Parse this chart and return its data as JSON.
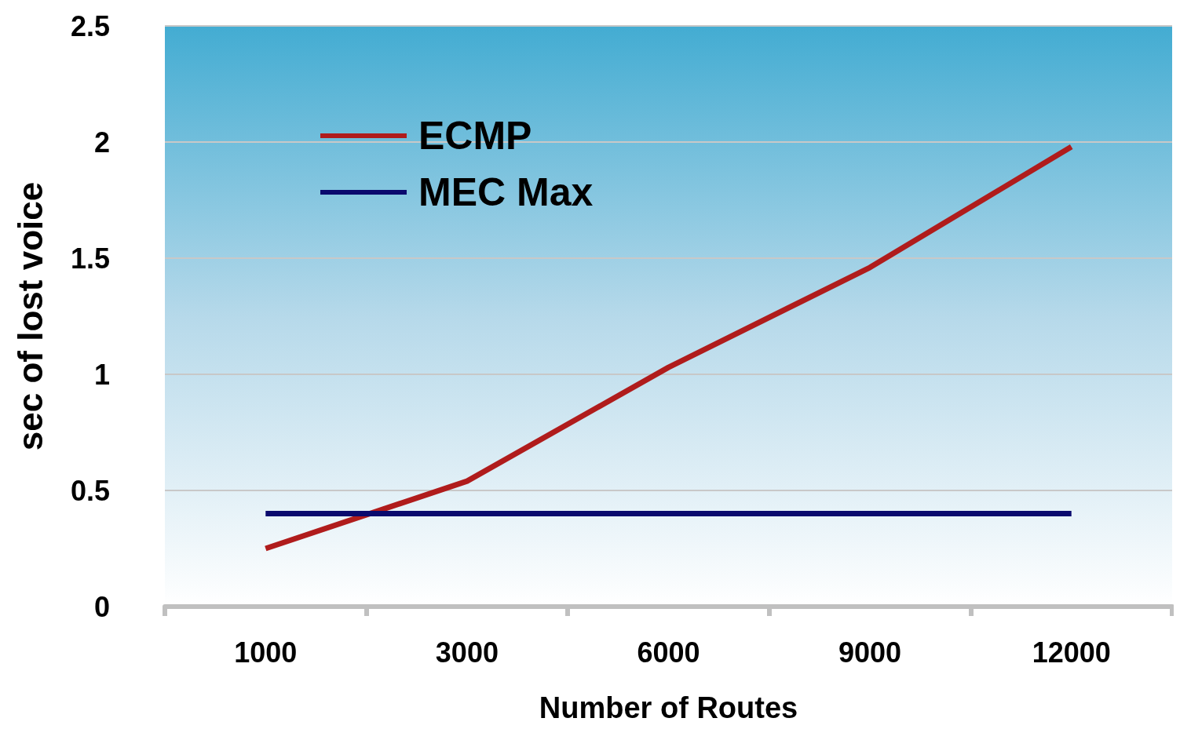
{
  "chart_data": {
    "type": "line",
    "xlabel": "Number of Routes",
    "ylabel": "sec of lost voice",
    "categories": [
      "1000",
      "3000",
      "6000",
      "9000",
      "12000"
    ],
    "series": [
      {
        "name": "ECMP",
        "color": "#b01c1c",
        "values": [
          0.25,
          0.54,
          1.03,
          1.46,
          1.98
        ]
      },
      {
        "name": "MEC Max",
        "color": "#0a0a6e",
        "values": [
          0.4,
          0.4,
          0.4,
          0.4,
          0.4
        ]
      }
    ],
    "ylim": [
      0,
      2.5
    ],
    "yticks": [
      0,
      0.5,
      1,
      1.5,
      2,
      2.5
    ],
    "grid": "y",
    "legend": "top left",
    "marker": "none",
    "line_style": "solid"
  }
}
